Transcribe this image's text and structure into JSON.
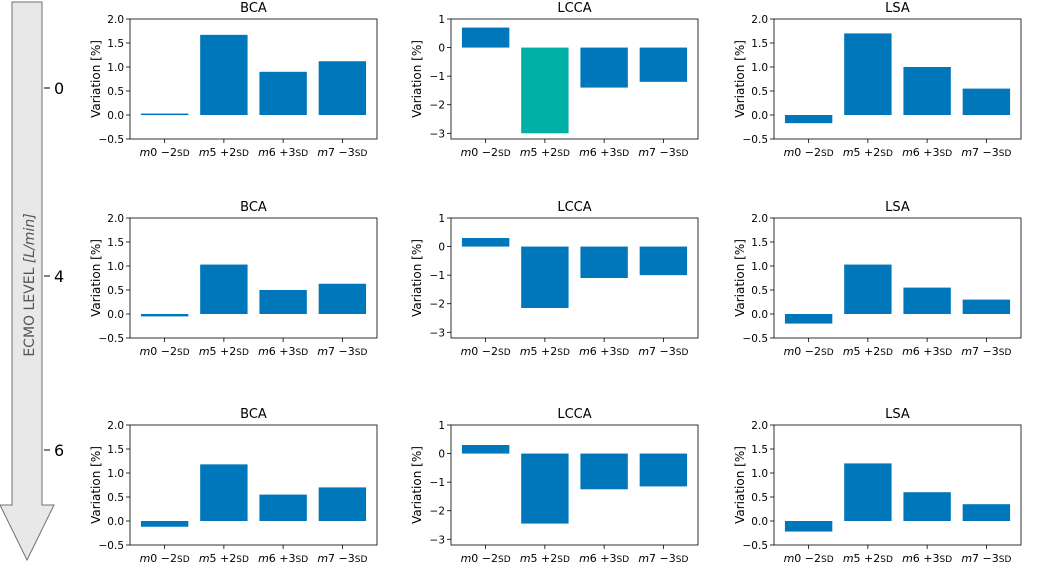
{
  "side_axis": {
    "label_text": "ECMO LEVEL ",
    "label_unit": "[L/min]",
    "ticks": [
      "0",
      "4",
      "6"
    ]
  },
  "y_axis_label": "Variation [%]",
  "colors": {
    "bar": "#0077bb",
    "highlight": "#00b0a4",
    "arrow_fill": "#e8e8e8",
    "arrow_stroke": "#707070"
  },
  "chart_data": [
    {
      "type": "bar",
      "title": "BCA",
      "ecmo_level": "0",
      "ylabel": "Variation [%]",
      "categories": [
        "m0 -2SD",
        "m5 +2SD",
        "m6 +3SD",
        "m7 -3SD"
      ],
      "values": [
        0.03,
        1.67,
        0.9,
        1.12
      ],
      "ylim": [
        -0.5,
        2.0
      ],
      "yticks": [
        -0.5,
        0.0,
        0.5,
        1.0,
        1.5,
        2.0
      ],
      "tick_decimals": 1,
      "highlight_index": null
    },
    {
      "type": "bar",
      "title": "LCCA",
      "ecmo_level": "0",
      "ylabel": "Variation [%]",
      "categories": [
        "m0 -2SD",
        "m5 +2SD",
        "m6 +3SD",
        "m7 -3SD"
      ],
      "values": [
        0.7,
        -3.0,
        -1.4,
        -1.2
      ],
      "ylim": [
        -3.2,
        1.0
      ],
      "yticks": [
        -3,
        -2,
        -1,
        0,
        1
      ],
      "tick_decimals": 0,
      "highlight_index": 1
    },
    {
      "type": "bar",
      "title": "LSA",
      "ecmo_level": "0",
      "ylabel": "Variation [%]",
      "categories": [
        "m0 -2SD",
        "m5 +2SD",
        "m6 +3SD",
        "m7 -3SD"
      ],
      "values": [
        -0.17,
        1.7,
        1.0,
        0.55
      ],
      "ylim": [
        -0.5,
        2.0
      ],
      "yticks": [
        -0.5,
        0.0,
        0.5,
        1.0,
        1.5,
        2.0
      ],
      "tick_decimals": 1,
      "highlight_index": null
    },
    {
      "type": "bar",
      "title": "BCA",
      "ecmo_level": "4",
      "ylabel": "Variation [%]",
      "categories": [
        "m0 -2SD",
        "m5 +2SD",
        "m6 +3SD",
        "m7 -3SD"
      ],
      "values": [
        -0.05,
        1.03,
        0.5,
        0.63
      ],
      "ylim": [
        -0.5,
        2.0
      ],
      "yticks": [
        -0.5,
        0.0,
        0.5,
        1.0,
        1.5,
        2.0
      ],
      "tick_decimals": 1,
      "highlight_index": null
    },
    {
      "type": "bar",
      "title": "LCCA",
      "ecmo_level": "4",
      "ylabel": "Variation [%]",
      "categories": [
        "m0 -2SD",
        "m5 +2SD",
        "m6 +3SD",
        "m7 -3SD"
      ],
      "values": [
        0.3,
        -2.15,
        -1.1,
        -1.0
      ],
      "ylim": [
        -3.2,
        1.0
      ],
      "yticks": [
        -3,
        -2,
        -1,
        0,
        1
      ],
      "tick_decimals": 0,
      "highlight_index": null
    },
    {
      "type": "bar",
      "title": "LSA",
      "ecmo_level": "4",
      "ylabel": "Variation [%]",
      "categories": [
        "m0 -2SD",
        "m5 +2SD",
        "m6 +3SD",
        "m7 -3SD"
      ],
      "values": [
        -0.2,
        1.03,
        0.55,
        0.3
      ],
      "ylim": [
        -0.5,
        2.0
      ],
      "yticks": [
        -0.5,
        0.0,
        0.5,
        1.0,
        1.5,
        2.0
      ],
      "tick_decimals": 1,
      "highlight_index": null
    },
    {
      "type": "bar",
      "title": "BCA",
      "ecmo_level": "6",
      "ylabel": "Variation [%]",
      "categories": [
        "m0 -2SD",
        "m5 +2SD",
        "m6 +3SD",
        "m7 -3SD"
      ],
      "values": [
        -0.12,
        1.18,
        0.55,
        0.7
      ],
      "ylim": [
        -0.5,
        2.0
      ],
      "yticks": [
        -0.5,
        0.0,
        0.5,
        1.0,
        1.5,
        2.0
      ],
      "tick_decimals": 1,
      "highlight_index": null
    },
    {
      "type": "bar",
      "title": "LCCA",
      "ecmo_level": "6",
      "ylabel": "Variation [%]",
      "categories": [
        "m0 -2SD",
        "m5 +2SD",
        "m6 +3SD",
        "m7 -3SD"
      ],
      "values": [
        0.3,
        -2.45,
        -1.25,
        -1.15
      ],
      "ylim": [
        -3.2,
        1.0
      ],
      "yticks": [
        -3,
        -2,
        -1,
        0,
        1
      ],
      "tick_decimals": 0,
      "highlight_index": null
    },
    {
      "type": "bar",
      "title": "LSA",
      "ecmo_level": "6",
      "ylabel": "Variation [%]",
      "categories": [
        "m0 -2SD",
        "m5 +2SD",
        "m6 +3SD",
        "m7 -3SD"
      ],
      "values": [
        -0.22,
        1.2,
        0.6,
        0.35
      ],
      "ylim": [
        -0.5,
        2.0
      ],
      "yticks": [
        -0.5,
        0.0,
        0.5,
        1.0,
        1.5,
        2.0
      ],
      "tick_decimals": 1,
      "highlight_index": null
    }
  ]
}
